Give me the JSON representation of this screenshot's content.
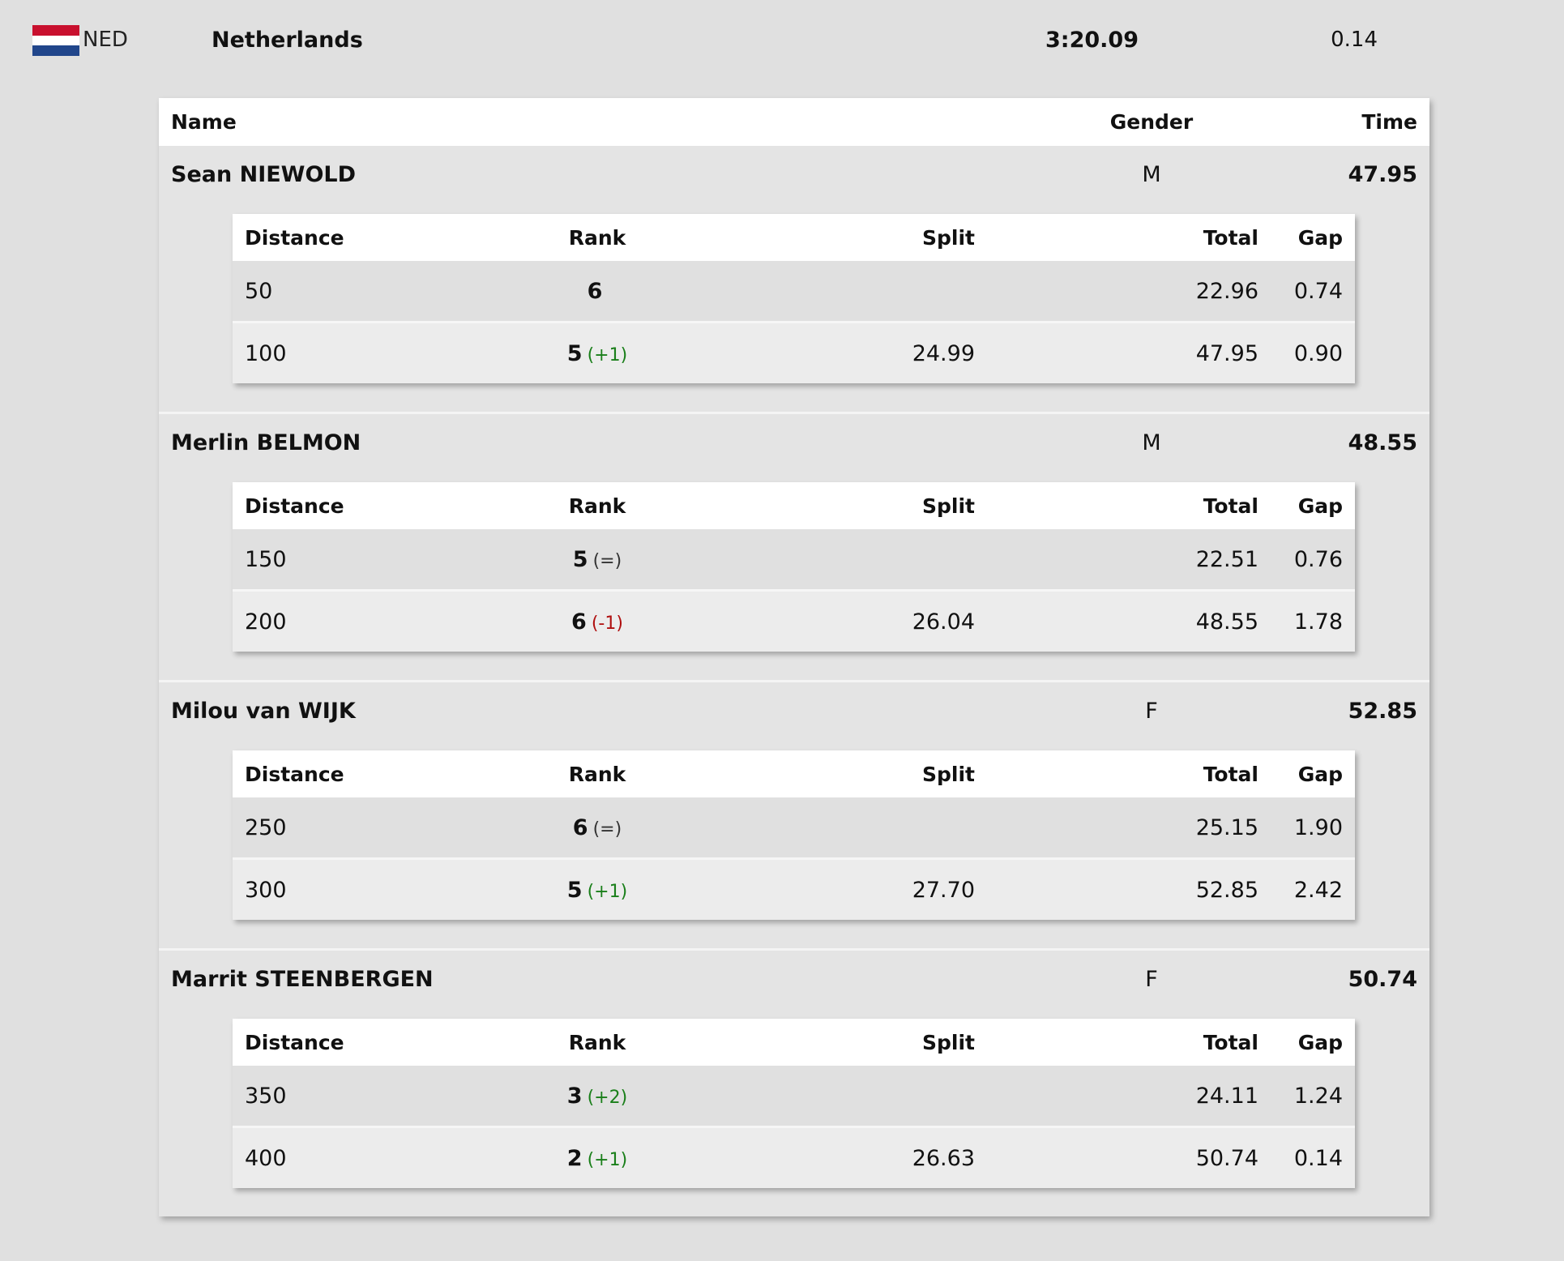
{
  "team": {
    "code": "NED",
    "name": "Netherlands",
    "time": "3:20.09",
    "gap": "0.14",
    "flag_colors": [
      "#c8102e",
      "#ffffff",
      "#21468b"
    ]
  },
  "columns": {
    "name": "Name",
    "gender": "Gender",
    "time": "Time"
  },
  "split_columns": {
    "distance": "Distance",
    "rank": "Rank",
    "split": "Split",
    "total": "Total",
    "gap": "Gap"
  },
  "athletes": [
    {
      "name": "Sean NIEWOLD",
      "gender": "M",
      "time": "47.95",
      "splits": [
        {
          "distance": "50",
          "rank": "6",
          "change": "",
          "change_type": "",
          "split": "",
          "total": "22.96",
          "gap": "0.74"
        },
        {
          "distance": "100",
          "rank": "5",
          "change": "(+1)",
          "change_type": "up",
          "split": "24.99",
          "total": "47.95",
          "gap": "0.90"
        }
      ]
    },
    {
      "name": "Merlin BELMON",
      "gender": "M",
      "time": "48.55",
      "splits": [
        {
          "distance": "150",
          "rank": "5",
          "change": "(=)",
          "change_type": "same",
          "split": "",
          "total": "22.51",
          "gap": "0.76"
        },
        {
          "distance": "200",
          "rank": "6",
          "change": "(-1)",
          "change_type": "down",
          "split": "26.04",
          "total": "48.55",
          "gap": "1.78"
        }
      ]
    },
    {
      "name": "Milou van WIJK",
      "gender": "F",
      "time": "52.85",
      "splits": [
        {
          "distance": "250",
          "rank": "6",
          "change": "(=)",
          "change_type": "same",
          "split": "",
          "total": "25.15",
          "gap": "1.90"
        },
        {
          "distance": "300",
          "rank": "5",
          "change": "(+1)",
          "change_type": "up",
          "split": "27.70",
          "total": "52.85",
          "gap": "2.42"
        }
      ]
    },
    {
      "name": "Marrit STEENBERGEN",
      "gender": "F",
      "time": "50.74",
      "splits": [
        {
          "distance": "350",
          "rank": "3",
          "change": "(+2)",
          "change_type": "up",
          "split": "",
          "total": "24.11",
          "gap": "1.24"
        },
        {
          "distance": "400",
          "rank": "2",
          "change": "(+1)",
          "change_type": "up",
          "split": "26.63",
          "total": "50.74",
          "gap": "0.14"
        }
      ]
    }
  ]
}
